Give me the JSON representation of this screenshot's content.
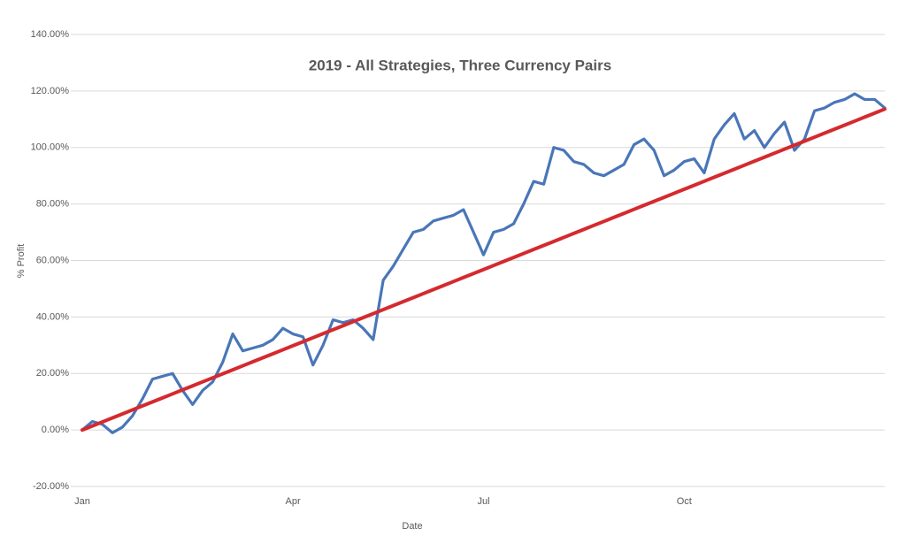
{
  "chart_data": {
    "type": "line",
    "title": "2019 - All Strategies, Three Currency Pairs",
    "xlabel": "Date",
    "ylabel": "% Profit",
    "categories": [
      "Jan",
      null,
      null,
      null,
      null,
      null,
      null,
      null,
      null,
      null,
      null,
      null,
      null,
      null,
      null,
      null,
      null,
      null,
      null,
      null,
      null,
      "Apr",
      null,
      null,
      null,
      null,
      null,
      null,
      null,
      null,
      null,
      null,
      null,
      null,
      null,
      null,
      null,
      null,
      null,
      null,
      "Jul",
      null,
      null,
      null,
      null,
      null,
      null,
      null,
      null,
      null,
      null,
      null,
      null,
      null,
      null,
      null,
      null,
      null,
      null,
      null,
      "Oct",
      null,
      null,
      null,
      null,
      null,
      null,
      null,
      null,
      null,
      null,
      null,
      null,
      null,
      null,
      null,
      null,
      null,
      null,
      null,
      null
    ],
    "series": [
      {
        "color": "#4a76b8",
        "values": [
          0,
          3,
          2,
          -1,
          1,
          5,
          11,
          18,
          19,
          20,
          14,
          9,
          14,
          17,
          24,
          34,
          28,
          29,
          30,
          32,
          36,
          34,
          33,
          23,
          30,
          39,
          38,
          39,
          36,
          32,
          53,
          58,
          64,
          70,
          71,
          74,
          75,
          76,
          78,
          70,
          62,
          70,
          71,
          73,
          80,
          88,
          87,
          100,
          99,
          95,
          94,
          91,
          90,
          92,
          94,
          101,
          103,
          99,
          90,
          92,
          95,
          96,
          91,
          103,
          108,
          112,
          103,
          106,
          100,
          105,
          109,
          99,
          103,
          113,
          114,
          116,
          117,
          119,
          117,
          117,
          114
        ]
      },
      {
        "color": "#d42a2f",
        "values": [
          0,
          1.42,
          2.84,
          4.26,
          5.68,
          7.1,
          8.52,
          9.94,
          11.36,
          12.78,
          14.2,
          15.62,
          17.04,
          18.46,
          19.88,
          21.3,
          22.72,
          24.14,
          25.56,
          26.98,
          28.4,
          29.82,
          31.24,
          32.66,
          34.08,
          35.5,
          36.92,
          38.34,
          39.76,
          41.18,
          42.6,
          44.02,
          45.44,
          46.86,
          48.28,
          49.7,
          51.12,
          52.54,
          53.96,
          55.38,
          56.8,
          58.22,
          59.64,
          61.06,
          62.48,
          63.9,
          65.32,
          66.74,
          68.16,
          69.58,
          71,
          72.42,
          73.84,
          75.26,
          76.68,
          78.1,
          79.52,
          80.94,
          82.36,
          83.78,
          85.2,
          86.62,
          88.04,
          89.46,
          90.88,
          92.3,
          93.72,
          95.14,
          96.56,
          97.98,
          99.4,
          100.82,
          102.24,
          103.66,
          105.08,
          106.5,
          107.92,
          109.34,
          110.76,
          112.18,
          113.6
        ]
      }
    ],
    "ylim": [
      -20,
      140
    ],
    "yticks": [
      {
        "value": -20,
        "label": "-20.00%"
      },
      {
        "value": 0,
        "label": "0.00%"
      },
      {
        "value": 20,
        "label": "20.00%"
      },
      {
        "value": 40,
        "label": "40.00%"
      },
      {
        "value": 60,
        "label": "60.00%"
      },
      {
        "value": 80,
        "label": "80.00%"
      },
      {
        "value": 100,
        "label": "100.00%"
      },
      {
        "value": 120,
        "label": "120.00%"
      },
      {
        "value": 140,
        "label": "140.00%"
      }
    ],
    "grid": true
  }
}
